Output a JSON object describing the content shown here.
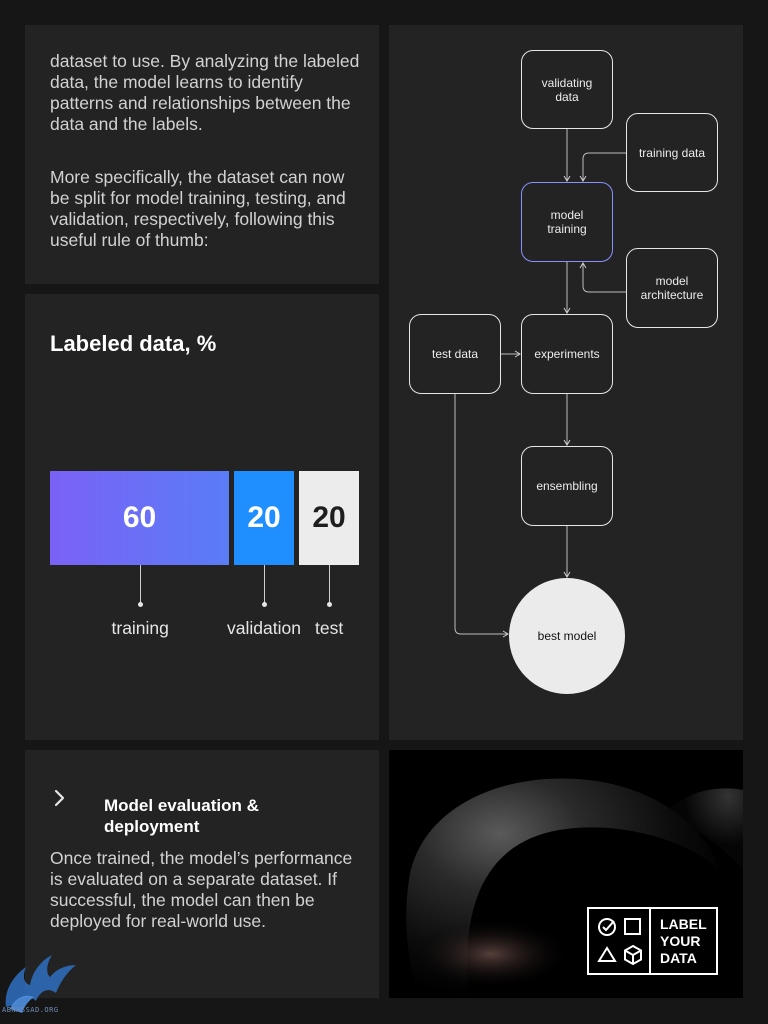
{
  "intro": {
    "paragraph_1": "dataset to use. By analyzing the labeled data, the model learns to identify patterns and relationships between the data and the labels.",
    "paragraph_2": "More specifically, the dataset can now be split for model training, testing, and validation, respectively, following this useful rule of thumb:"
  },
  "chart_data": {
    "type": "bar",
    "title": "Labeled data, %",
    "categories": [
      "training",
      "validation",
      "test"
    ],
    "values": [
      60,
      20,
      20
    ],
    "colors": [
      "#7a62f6",
      "#1f8fff",
      "#ececec"
    ]
  },
  "flow": {
    "nodes": {
      "validating_data": "validating data",
      "training_data": "training data",
      "model_training": "model training",
      "model_architecture": "model architecture",
      "test_data": "test data",
      "experiments": "experiments",
      "ensembling": "ensembling",
      "best_model": "best model"
    }
  },
  "evaluation": {
    "title": "Model evaluation & deployment",
    "body": "Once trained, the model’s performance is evaluated on a separate dataset. If successful, the model can then be deployed for real-world use."
  },
  "logo": {
    "line_1": "LABEL",
    "line_2": "YOUR",
    "line_3": "DATA"
  },
  "watermark": "ABNASSAD.ORG",
  "colors": {
    "background": "#161616",
    "panel": "#232323",
    "accent_purple": "#7a62f6",
    "accent_blue": "#1f8fff",
    "highlight_border": "#8891ff"
  }
}
